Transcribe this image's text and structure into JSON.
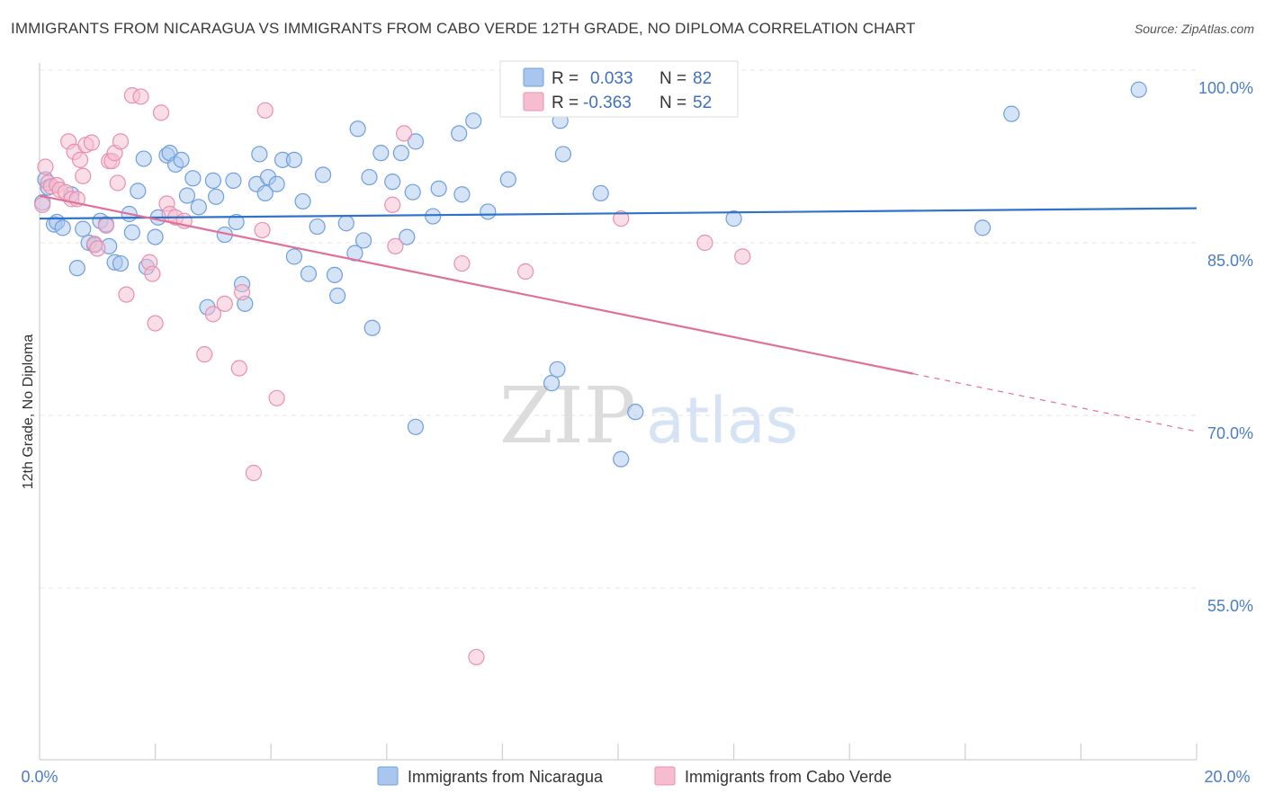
{
  "title": "IMMIGRANTS FROM NICARAGUA VS IMMIGRANTS FROM CABO VERDE 12TH GRADE, NO DIPLOMA CORRELATION CHART",
  "source": "Source: ZipAtlas.com",
  "watermark": {
    "zip": "ZIP",
    "atlas": "atlas"
  },
  "colors": {
    "blue_fill": "#a9c7ee",
    "blue_stroke": "#6f9fdd",
    "blue_line": "#2f72c9",
    "pink_fill": "#f6bdd0",
    "pink_stroke": "#e98fb0",
    "pink_line": "#e0709a",
    "axis_text": "#4a7cc7",
    "grid": "#e3e3e3"
  },
  "stats_legend": [
    {
      "r_label": "R =",
      "r_value": "0.033",
      "n_label": "N =",
      "n_value": "82"
    },
    {
      "r_label": "R =",
      "r_value": "-0.363",
      "n_label": "N =",
      "n_value": "52"
    }
  ],
  "chart_data": {
    "type": "scatter",
    "title": "IMMIGRANTS FROM NICARAGUA VS IMMIGRANTS FROM CABO VERDE 12TH GRADE, NO DIPLOMA CORRELATION CHART",
    "xlabel": "",
    "ylabel": "12th Grade, No Diploma",
    "xlim": [
      0,
      20
    ],
    "ylim": [
      40,
      101
    ],
    "x_tick_labels": [
      "0.0%",
      "20.0%"
    ],
    "y_ticks": [
      100,
      85,
      70,
      55
    ],
    "y_tick_labels": [
      "100.0%",
      "85.0%",
      "70.0%",
      "55.0%"
    ],
    "grid": true,
    "legend_position": "bottom",
    "series": [
      {
        "name": "Immigrants from Nicaragua",
        "color": "#a9c7ee",
        "trend": {
          "x": [
            0,
            20
          ],
          "y": [
            87.1,
            88.0
          ],
          "dashed_from": null
        },
        "points": [
          [
            0.05,
            88.5
          ],
          [
            0.1,
            90.5
          ],
          [
            0.15,
            89.8
          ],
          [
            0.25,
            86.6
          ],
          [
            0.3,
            86.8
          ],
          [
            0.4,
            86.3
          ],
          [
            0.55,
            89.2
          ],
          [
            0.65,
            82.8
          ],
          [
            0.75,
            86.2
          ],
          [
            0.85,
            85.0
          ],
          [
            0.95,
            84.8
          ],
          [
            1.05,
            86.9
          ],
          [
            1.15,
            86.6
          ],
          [
            1.2,
            84.7
          ],
          [
            1.3,
            83.3
          ],
          [
            1.4,
            83.2
          ],
          [
            1.55,
            87.5
          ],
          [
            1.6,
            85.9
          ],
          [
            1.7,
            89.5
          ],
          [
            1.8,
            92.3
          ],
          [
            1.85,
            82.9
          ],
          [
            2.0,
            85.5
          ],
          [
            2.05,
            87.2
          ],
          [
            2.2,
            92.6
          ],
          [
            2.25,
            92.8
          ],
          [
            2.35,
            91.8
          ],
          [
            2.45,
            92.2
          ],
          [
            2.55,
            89.1
          ],
          [
            2.65,
            90.6
          ],
          [
            2.75,
            88.1
          ],
          [
            2.9,
            79.4
          ],
          [
            3.0,
            90.4
          ],
          [
            3.05,
            89.0
          ],
          [
            3.2,
            85.7
          ],
          [
            3.35,
            90.4
          ],
          [
            3.4,
            86.8
          ],
          [
            3.5,
            81.4
          ],
          [
            3.55,
            79.7
          ],
          [
            3.75,
            90.1
          ],
          [
            3.8,
            92.7
          ],
          [
            3.9,
            89.3
          ],
          [
            3.95,
            90.7
          ],
          [
            4.1,
            90.1
          ],
          [
            4.2,
            92.2
          ],
          [
            4.4,
            92.2
          ],
          [
            4.4,
            83.8
          ],
          [
            4.55,
            88.6
          ],
          [
            4.65,
            82.3
          ],
          [
            4.8,
            86.4
          ],
          [
            4.9,
            90.9
          ],
          [
            5.1,
            82.2
          ],
          [
            5.15,
            80.4
          ],
          [
            5.3,
            86.7
          ],
          [
            5.45,
            84.1
          ],
          [
            5.5,
            94.9
          ],
          [
            5.6,
            85.2
          ],
          [
            5.7,
            90.7
          ],
          [
            5.75,
            77.6
          ],
          [
            5.9,
            92.8
          ],
          [
            6.1,
            90.3
          ],
          [
            6.25,
            92.8
          ],
          [
            6.35,
            85.5
          ],
          [
            6.45,
            89.4
          ],
          [
            6.5,
            93.8
          ],
          [
            6.5,
            69.0
          ],
          [
            6.8,
            87.3
          ],
          [
            6.9,
            89.7
          ],
          [
            7.25,
            94.5
          ],
          [
            7.3,
            89.2
          ],
          [
            7.5,
            95.6
          ],
          [
            7.75,
            87.7
          ],
          [
            8.1,
            90.5
          ],
          [
            8.85,
            72.8
          ],
          [
            8.95,
            74.0
          ],
          [
            9.0,
            95.6
          ],
          [
            9.05,
            92.7
          ],
          [
            9.7,
            89.3
          ],
          [
            10.05,
            66.2
          ],
          [
            10.3,
            70.3
          ],
          [
            12.0,
            87.1
          ],
          [
            16.3,
            86.3
          ],
          [
            16.8,
            96.2
          ],
          [
            19.0,
            98.3
          ]
        ]
      },
      {
        "name": "Immigrants from Cabo Verde",
        "color": "#f6bdd0",
        "trend": {
          "x": [
            0,
            20
          ],
          "y": [
            89.1,
            68.6
          ],
          "dashed_from": 15.1
        },
        "points": [
          [
            0.05,
            88.3
          ],
          [
            0.1,
            91.6
          ],
          [
            0.15,
            90.2
          ],
          [
            0.2,
            89.9
          ],
          [
            0.3,
            90.0
          ],
          [
            0.35,
            89.6
          ],
          [
            0.45,
            89.4
          ],
          [
            0.5,
            93.8
          ],
          [
            0.55,
            88.8
          ],
          [
            0.6,
            92.9
          ],
          [
            0.65,
            88.8
          ],
          [
            0.7,
            92.2
          ],
          [
            0.75,
            90.8
          ],
          [
            0.8,
            93.5
          ],
          [
            0.9,
            93.7
          ],
          [
            0.95,
            84.9
          ],
          [
            1.0,
            84.5
          ],
          [
            1.15,
            86.5
          ],
          [
            1.2,
            92.1
          ],
          [
            1.25,
            92.1
          ],
          [
            1.3,
            92.8
          ],
          [
            1.35,
            90.2
          ],
          [
            1.4,
            93.8
          ],
          [
            1.5,
            80.5
          ],
          [
            1.6,
            97.8
          ],
          [
            1.75,
            97.7
          ],
          [
            1.9,
            83.3
          ],
          [
            1.95,
            82.3
          ],
          [
            2.0,
            78.0
          ],
          [
            2.1,
            96.3
          ],
          [
            2.2,
            88.4
          ],
          [
            2.25,
            87.5
          ],
          [
            2.35,
            87.2
          ],
          [
            2.5,
            86.9
          ],
          [
            2.85,
            75.3
          ],
          [
            3.0,
            78.8
          ],
          [
            3.2,
            79.7
          ],
          [
            3.45,
            74.1
          ],
          [
            3.5,
            80.7
          ],
          [
            3.7,
            65.0
          ],
          [
            3.85,
            86.1
          ],
          [
            3.9,
            96.5
          ],
          [
            4.1,
            71.5
          ],
          [
            6.1,
            88.3
          ],
          [
            6.15,
            84.7
          ],
          [
            6.3,
            94.5
          ],
          [
            7.3,
            83.2
          ],
          [
            7.55,
            49.0
          ],
          [
            8.4,
            82.5
          ],
          [
            10.05,
            87.1
          ],
          [
            11.5,
            85.0
          ],
          [
            12.15,
            83.8
          ]
        ]
      }
    ]
  },
  "bottom_legend": [
    {
      "label": "Immigrants from Nicaragua"
    },
    {
      "label": "Immigrants from Cabo Verde"
    }
  ]
}
